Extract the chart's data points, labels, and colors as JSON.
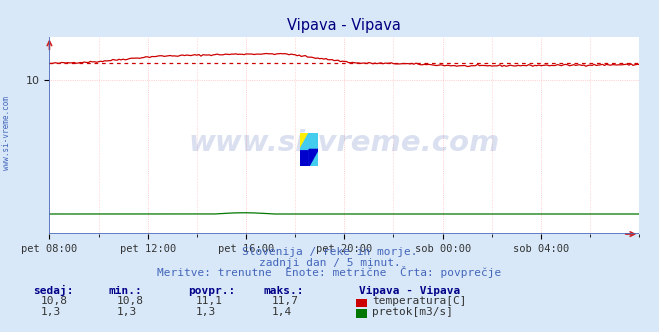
{
  "title": "Vipava - Vipava",
  "title_color": "#000080",
  "bg_color": "#d8e8f8",
  "plot_bg_color": "#ffffff",
  "grid_color_x": "#ffaaaa",
  "grid_color_y": "#ffaaaa",
  "xlabel_ticks": [
    "pet 08:00",
    "pet 12:00",
    "pet 16:00",
    "pet 20:00",
    "sob 00:00",
    "sob 04:00"
  ],
  "ytick_val": 10,
  "ytick_label": "10",
  "ymax": 12.8,
  "ymin": 0.0,
  "temp_color": "#cc0000",
  "flow_color": "#007700",
  "temp_avg": 11.1,
  "flow_avg": 1.3,
  "subtitle1": "Slovenija / reke in morje.",
  "subtitle2": "zadnji dan / 5 minut.",
  "subtitle3": "Meritve: trenutne  Enote: metrične  Črta: povprečje",
  "subtitle_color": "#4466bb",
  "legend_title": "Vipava - Vipava",
  "legend_temp": "temperatura[C]",
  "legend_flow": "pretok[m3/s]",
  "stats_headers": [
    "sedaj:",
    "min.:",
    "povpr.:",
    "maks.:"
  ],
  "stats_temp": [
    "10,8",
    "10,8",
    "11,1",
    "11,7"
  ],
  "stats_flow": [
    "1,3",
    "1,3",
    "1,3",
    "1,4"
  ],
  "watermark": "www.si-vreme.com",
  "watermark_color": "#3355aa",
  "watermark_alpha": 0.18,
  "left_label": "www.si-vreme.com",
  "left_label_color": "#4466bb",
  "axis_color": "#4466bb",
  "arrow_color": "#cc2222"
}
